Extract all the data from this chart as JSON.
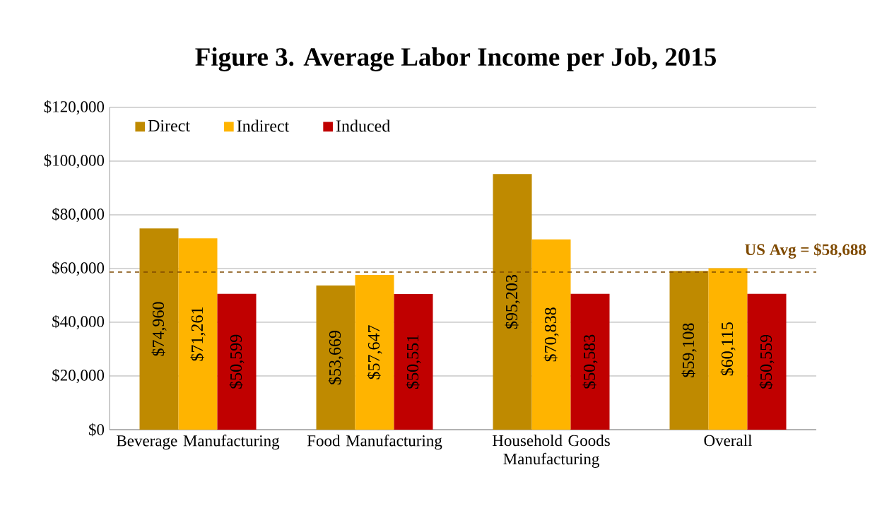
{
  "chart_data": {
    "type": "bar",
    "title": "Figure 3.  Average Labor Income per Job, 2015",
    "categories": [
      "Beverage Manufacturing",
      "Food Manufacturing",
      "Household Goods Manufacturing",
      "Overall"
    ],
    "series": [
      {
        "name": "Direct",
        "color": "#bf8a00",
        "values": [
          74960,
          53669,
          95203,
          59108
        ],
        "value_labels": [
          "$74,960",
          "$53,669",
          "$95,203",
          "$59,108"
        ]
      },
      {
        "name": "Indirect",
        "color": "#ffb400",
        "values": [
          71261,
          57647,
          70838,
          60115
        ],
        "value_labels": [
          "$71,261",
          "$57,647",
          "$70,838",
          "$60,115"
        ]
      },
      {
        "name": "Induced",
        "color": "#c00000",
        "values": [
          50599,
          50551,
          50583,
          50559
        ],
        "value_labels": [
          "$50,599",
          "$50,551",
          "$50,583",
          "$50,559"
        ]
      }
    ],
    "ylim": [
      0,
      120000
    ],
    "yticks": [
      {
        "value": 0,
        "label": "$0"
      },
      {
        "value": 20000,
        "label": "$20,000"
      },
      {
        "value": 40000,
        "label": "$40,000"
      },
      {
        "value": 60000,
        "label": "$60,000"
      },
      {
        "value": 80000,
        "label": "$80,000"
      },
      {
        "value": 100000,
        "label": "$100,000"
      },
      {
        "value": 120000,
        "label": "$120,000"
      }
    ],
    "grid": "y",
    "legend": "top left",
    "ref_lines": [
      {
        "axis": "y",
        "value": 58688,
        "label": "US Avg = $58,688",
        "color": "#7f4a00",
        "line_style": "dashed"
      }
    ]
  }
}
